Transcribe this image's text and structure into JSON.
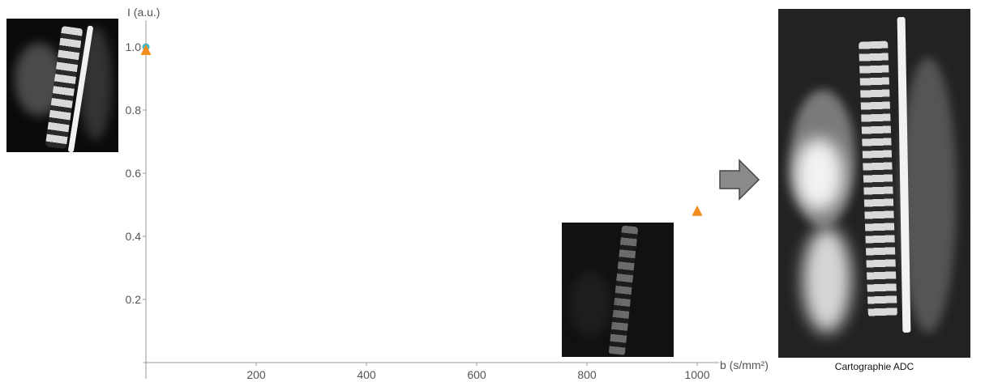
{
  "chart_data": {
    "type": "scatter",
    "ylabel": "I (a.u.)",
    "xlabel": "b (s/mm²)",
    "xlim": [
      -5,
      1040
    ],
    "ylim": [
      0,
      1.05
    ],
    "x_ticks": [
      200,
      400,
      600,
      800,
      1000
    ],
    "y_ticks": [
      0.2,
      0.4,
      0.6,
      0.8,
      1.0
    ],
    "y_tick_labels": [
      "0.2",
      "0.4",
      "0.6",
      "0.8",
      "1.0"
    ],
    "series": [
      {
        "marker": "circle",
        "color": "#3fbcc9",
        "points": [
          {
            "x": 0,
            "y": 1.0
          }
        ]
      },
      {
        "marker": "triangle",
        "color": "#f28c1e",
        "points": [
          {
            "x": 0,
            "y": 0.99
          },
          {
            "x": 1000,
            "y": 0.48
          }
        ]
      }
    ],
    "grid": false
  },
  "images": {
    "t2_icon": "mri-sagittal-spine-icon",
    "dw_icon": "mri-diffusion-weighted-icon",
    "adc_icon": "mri-adc-map-icon"
  },
  "arrow_icon": "right-arrow-icon",
  "adc_caption": "Cartographie ADC"
}
